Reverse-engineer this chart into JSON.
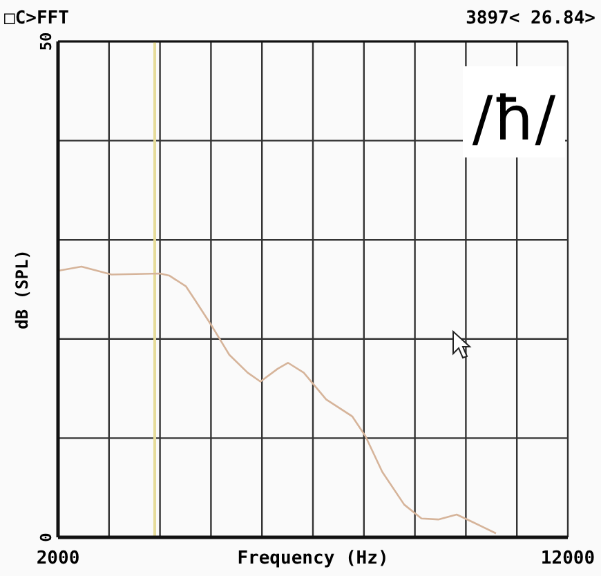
{
  "chart_data": {
    "type": "line",
    "title": "□C>FFT",
    "subtitle": "3897< 26.84>",
    "xlabel": "Frequency (Hz)",
    "ylabel": "dB (SPL)",
    "annotations": [
      "/ħ/"
    ],
    "xlim": [
      2000,
      12000
    ],
    "ylim": [
      0,
      50
    ],
    "xticks": [
      2000,
      {
        "value": 3000,
        "label": null
      },
      {
        "value": 4000,
        "label": null
      },
      {
        "value": 5000,
        "label": null
      },
      {
        "value": 6000,
        "label": null
      },
      {
        "value": 7000,
        "label": null
      },
      {
        "value": 8000,
        "label": null
      },
      {
        "value": 9000,
        "label": null
      },
      {
        "value": 10000,
        "label": null
      },
      {
        "value": 11000,
        "label": null
      },
      12000
    ],
    "yticks": [
      0,
      {
        "value": 10,
        "label": null
      },
      {
        "value": 20,
        "label": null
      },
      {
        "value": 30,
        "label": null
      },
      {
        "value": 40,
        "label": null
      },
      50
    ],
    "grid": true,
    "ref_lines": [
      {
        "axis": "x",
        "value": 3897,
        "color": "#e6dc9a"
      }
    ],
    "x": [
      2026,
      2460,
      3050,
      4000,
      4180,
      4510,
      4690,
      5030,
      5360,
      5720,
      5970,
      6310,
      6510,
      6820,
      7260,
      7770,
      8030,
      8360,
      8790,
      9130,
      9460,
      9820,
      10150,
      10590
    ],
    "series": [
      {
        "color": "#d6b49a",
        "values": [
          26.9,
          27.3,
          26.5,
          26.6,
          26.4,
          25.3,
          23.9,
          21.2,
          18.4,
          16.6,
          15.7,
          17.0,
          17.6,
          16.6,
          13.9,
          12.2,
          10.2,
          6.6,
          3.3,
          1.9,
          1.8,
          2.3,
          1.5,
          0.4
        ]
      }
    ]
  }
}
